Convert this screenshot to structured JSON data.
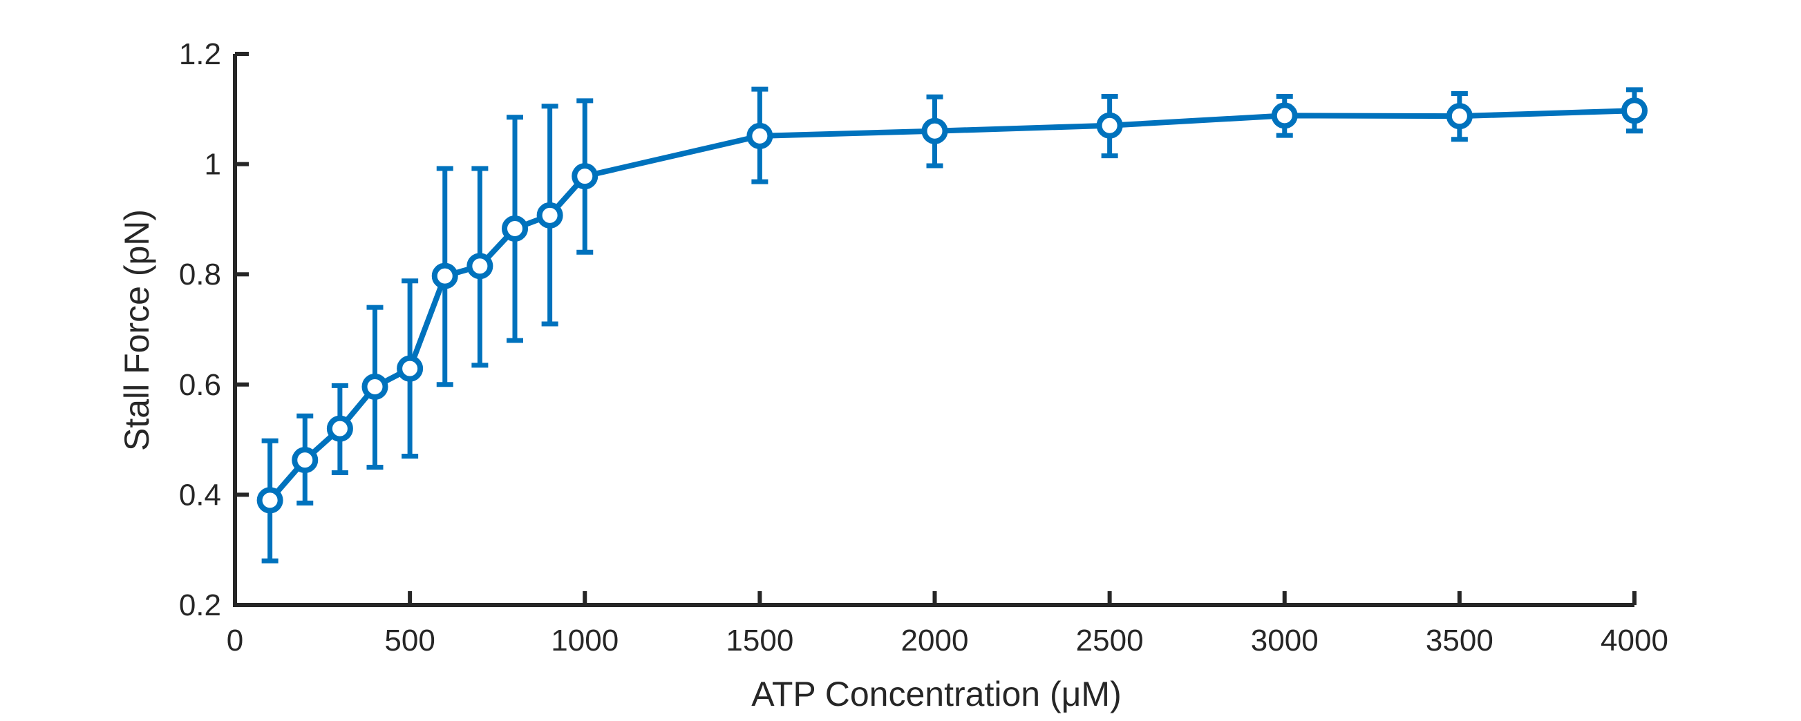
{
  "chart_data": {
    "type": "line",
    "xlabel": "ATP Concentration (μM)",
    "ylabel": "Stall Force (pN)",
    "xlim": [
      0,
      4000
    ],
    "ylim": [
      0.2,
      1.2
    ],
    "xticks": [
      "0",
      "500",
      "1000",
      "1500",
      "2000",
      "2500",
      "3000",
      "3500",
      "4000"
    ],
    "yticks": [
      "0.2",
      "0.4",
      "0.6",
      "0.8",
      "1",
      "1.2"
    ],
    "grid": false,
    "color": "#0072BD",
    "series": [
      {
        "x": [
          100,
          200,
          300,
          400,
          500,
          600,
          700,
          800,
          900,
          1000,
          1500,
          2000,
          2500,
          3000,
          3500,
          4000
        ],
        "y": [
          0.39,
          0.463,
          0.52,
          0.596,
          0.629,
          0.797,
          0.815,
          0.883,
          0.907,
          0.978,
          1.051,
          1.06,
          1.07,
          1.088,
          1.087,
          1.097
        ],
        "err_low": [
          0.28,
          0.385,
          0.44,
          0.45,
          0.47,
          0.6,
          0.635,
          0.68,
          0.71,
          0.84,
          0.968,
          0.997,
          1.015,
          1.052,
          1.045,
          1.06
        ],
        "err_high": [
          0.498,
          0.543,
          0.598,
          0.74,
          0.788,
          0.992,
          0.992,
          1.085,
          1.105,
          1.115,
          1.136,
          1.122,
          1.123,
          1.123,
          1.128,
          1.135
        ]
      }
    ]
  }
}
